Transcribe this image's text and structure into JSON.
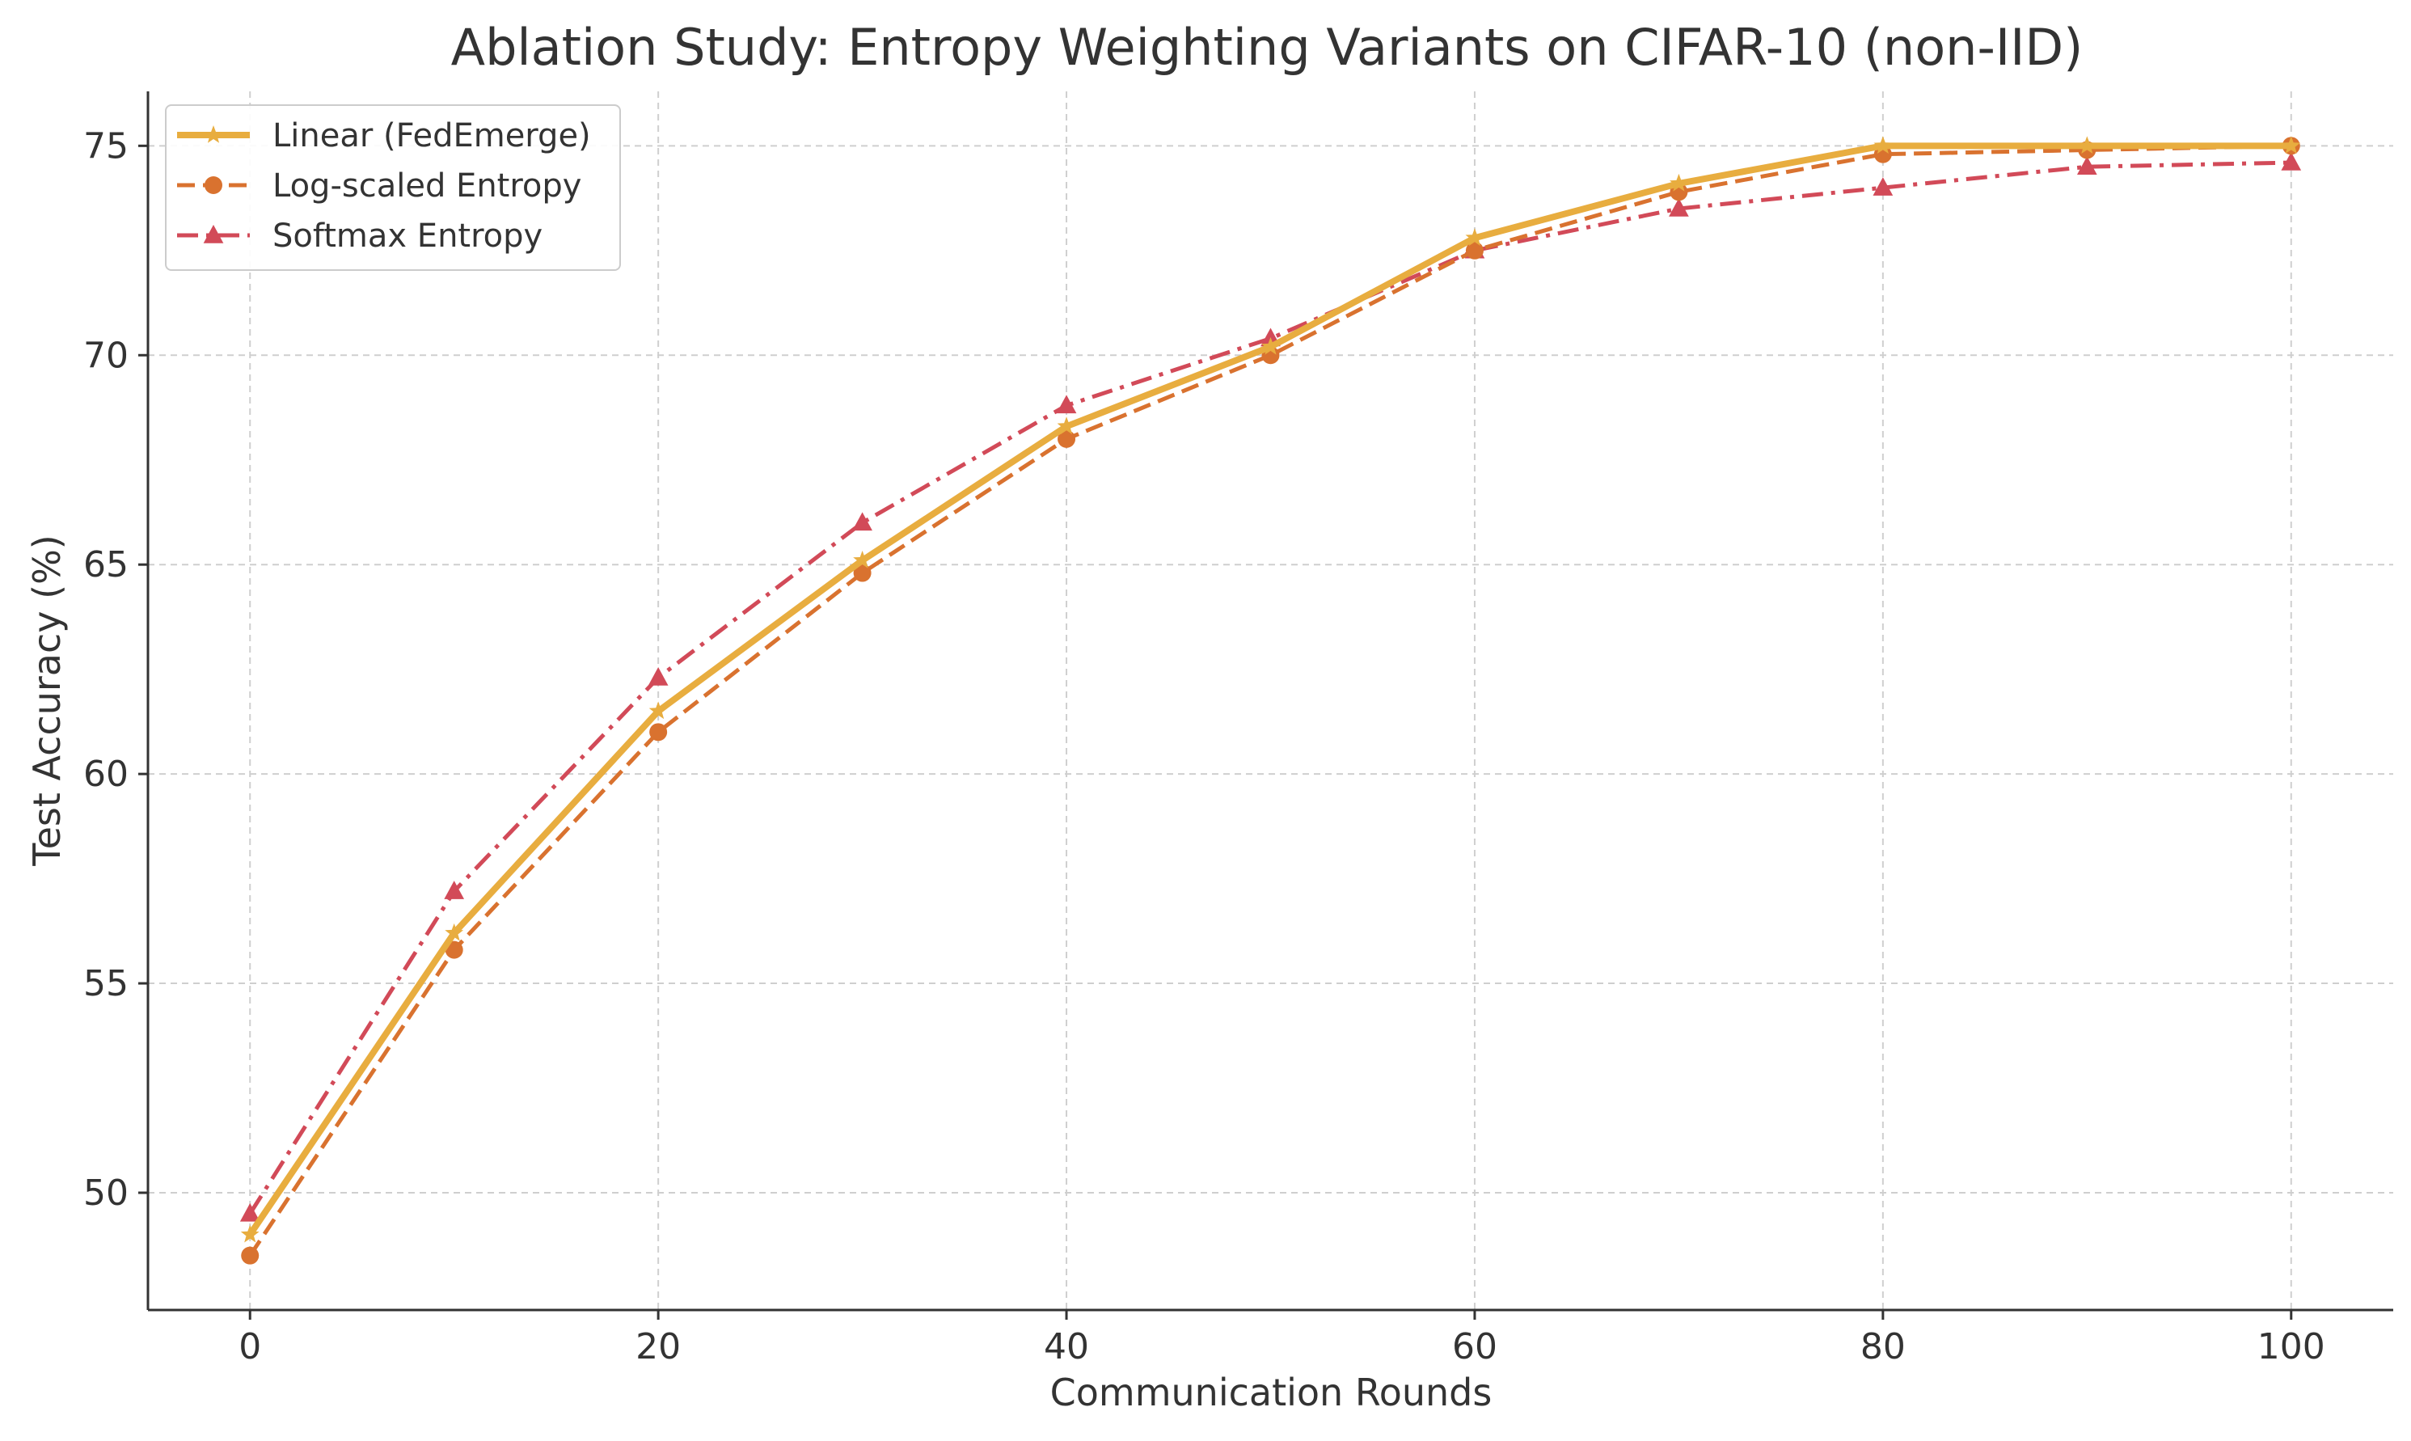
{
  "chart_data": {
    "type": "line",
    "title": "Ablation Study: Entropy Weighting Variants on CIFAR-10 (non-IID)",
    "xlabel": "Communication Rounds",
    "ylabel": "Test Accuracy (%)",
    "xlim": [
      -5,
      105
    ],
    "ylim": [
      47.2,
      76.3
    ],
    "xticks": [
      0,
      20,
      40,
      60,
      80,
      100
    ],
    "yticks": [
      50,
      55,
      60,
      65,
      70,
      75
    ],
    "grid": true,
    "legend_position": "top-left",
    "x": [
      0,
      10,
      20,
      30,
      40,
      50,
      60,
      70,
      80,
      90,
      100
    ],
    "series": [
      {
        "name": "Linear (FedEmerge)",
        "color": "#E8AD3F",
        "line_style": "solid",
        "marker": "star",
        "values": [
          49.0,
          56.2,
          61.5,
          65.1,
          68.3,
          70.2,
          72.8,
          74.1,
          75.0,
          75.0,
          75.0
        ]
      },
      {
        "name": "Log-scaled Entropy",
        "color": "#D9722F",
        "line_style": "dashed",
        "marker": "circle",
        "values": [
          48.5,
          55.8,
          61.0,
          64.8,
          68.0,
          70.0,
          72.5,
          73.9,
          74.8,
          74.9,
          75.0
        ]
      },
      {
        "name": "Softmax Entropy",
        "color": "#D24A58",
        "line_style": "dashdot",
        "marker": "triangle",
        "values": [
          49.5,
          57.2,
          62.3,
          66.0,
          68.8,
          70.4,
          72.5,
          73.5,
          74.0,
          74.5,
          74.6
        ]
      }
    ]
  }
}
